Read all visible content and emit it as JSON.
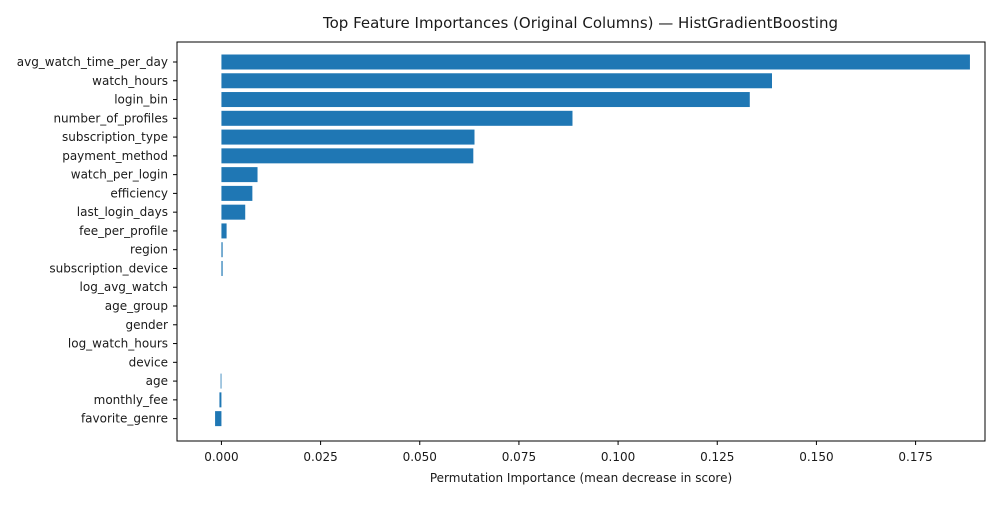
{
  "chart_data": {
    "type": "bar",
    "orientation": "horizontal",
    "title": "Top Feature Importances (Original Columns) — HistGradientBoosting",
    "xlabel": "Permutation Importance (mean decrease in score)",
    "ylabel": "",
    "xlim": [
      -0.0112,
      0.1925
    ],
    "xticks": [
      "0.000",
      "0.025",
      "0.050",
      "0.075",
      "0.100",
      "0.125",
      "0.150",
      "0.175"
    ],
    "xtick_values": [
      0.0,
      0.025,
      0.05,
      0.075,
      0.1,
      0.125,
      0.15,
      0.175
    ],
    "bar_color": "#1f77b4",
    "grid": false,
    "categories": [
      "avg_watch_time_per_day",
      "watch_hours",
      "login_bin",
      "number_of_profiles",
      "subscription_type",
      "payment_method",
      "watch_per_login",
      "efficiency",
      "last_login_days",
      "fee_per_profile",
      "region",
      "subscription_device",
      "log_avg_watch",
      "age_group",
      "gender",
      "log_watch_hours",
      "device",
      "age",
      "monthly_fee",
      "favorite_genre"
    ],
    "values": [
      0.1887,
      0.1388,
      0.1332,
      0.0885,
      0.0638,
      0.0635,
      0.0091,
      0.0078,
      0.006,
      0.0013,
      0.0003,
      0.0003,
      0.0,
      0.0,
      0.0,
      0.0,
      0.0,
      -0.0002,
      -0.0005,
      -0.0016
    ]
  }
}
